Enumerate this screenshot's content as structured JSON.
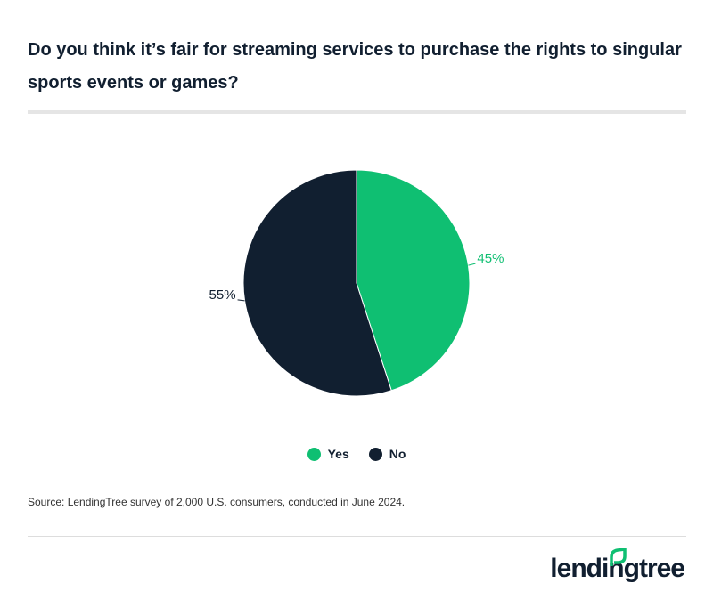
{
  "title": "Do you think it’s fair for streaming services to purchase the rights to singular sports events or games?",
  "chart_data": {
    "type": "pie",
    "title": "Do you think it’s fair for streaming services to purchase the rights to singular sports events or games?",
    "categories": [
      "Yes",
      "No"
    ],
    "values": [
      45,
      55
    ],
    "labels": [
      "45%",
      "55%"
    ],
    "colors": [
      "#0fbf72",
      "#111f30"
    ],
    "legend_position": "bottom"
  },
  "legend": [
    {
      "label": "Yes",
      "color": "#0fbf72"
    },
    {
      "label": "No",
      "color": "#111f30"
    }
  ],
  "source": "Source: LendingTree survey of 2,000 U.S. consumers, conducted in June 2024.",
  "logo": {
    "text": "lendingtree",
    "icon": "leaf-icon"
  }
}
